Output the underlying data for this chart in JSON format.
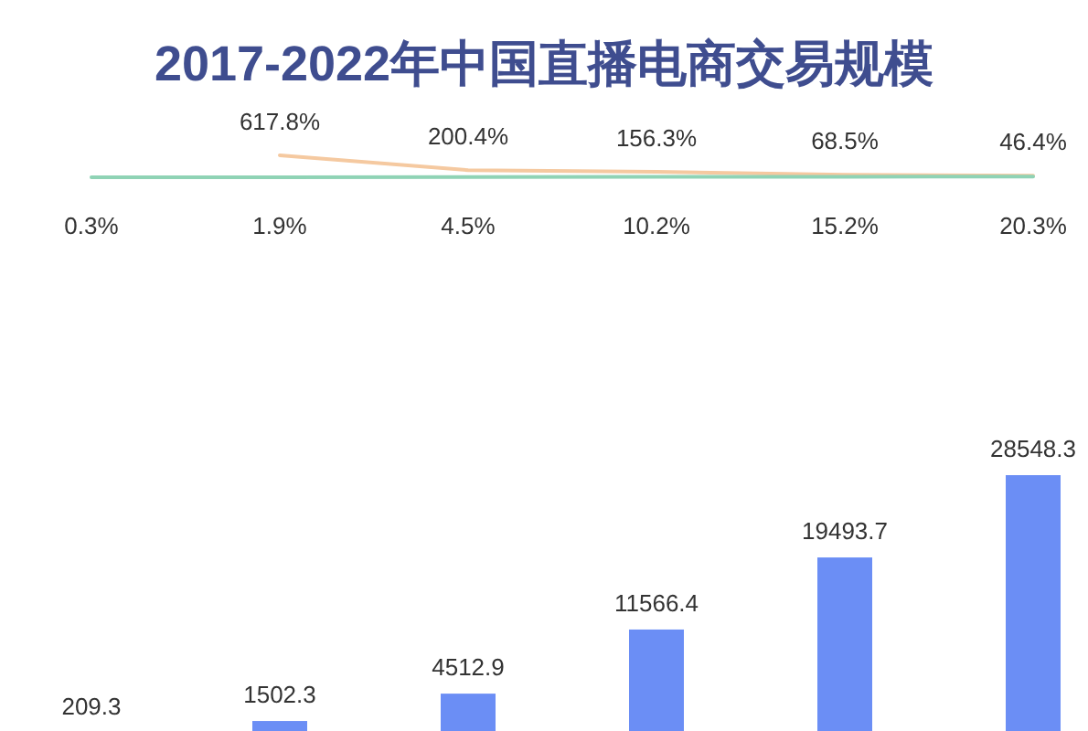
{
  "chart_data": [
    {
      "type": "line",
      "title": "2017-2022年中国直播电商交易规模",
      "categories": [
        null,
        null,
        null,
        null,
        null,
        null
      ],
      "series": [
        {
          "color": "#f5c9a0",
          "values": [
            null,
            617.8,
            200.4,
            156.3,
            68.5,
            46.4
          ],
          "value_labels": [
            null,
            "617.8%",
            "200.4%",
            "156.3%",
            "68.5%",
            "46.4%"
          ]
        },
        {
          "color": "#8fd3b5",
          "values": [
            0.3,
            1.9,
            4.5,
            10.2,
            15.2,
            20.3
          ],
          "value_labels": [
            "0.3%",
            "1.9%",
            "4.5%",
            "10.2%",
            "15.2%",
            "20.3%"
          ]
        }
      ]
    },
    {
      "type": "bar",
      "categories": [
        null,
        null,
        null,
        null,
        null,
        null
      ],
      "color": "#6b8ef5",
      "values": [
        209.3,
        1502.3,
        4512.9,
        11566.4,
        19493.7,
        28548.3
      ],
      "data_labels": true
    }
  ]
}
